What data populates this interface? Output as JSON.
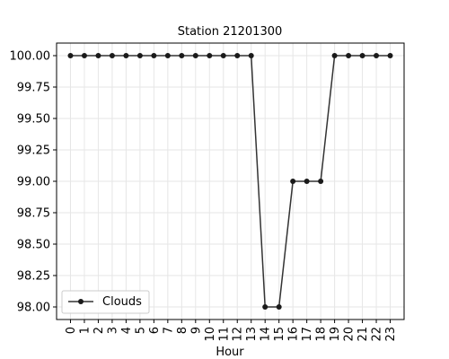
{
  "chart_data": {
    "type": "line",
    "title": "Station 21201300",
    "xlabel": "Hour",
    "ylabel": "",
    "x": [
      "0",
      "1",
      "2",
      "3",
      "4",
      "5",
      "6",
      "7",
      "8",
      "9",
      "10",
      "11",
      "12",
      "13",
      "14",
      "15",
      "16",
      "17",
      "18",
      "19",
      "20",
      "21",
      "22",
      "23"
    ],
    "series": [
      {
        "name": "Clouds",
        "values": [
          100,
          100,
          100,
          100,
          100,
          100,
          100,
          100,
          100,
          100,
          100,
          100,
          100,
          100,
          98,
          98,
          99,
          99,
          99,
          100,
          100,
          100,
          100,
          100
        ]
      }
    ],
    "xlim": [
      -1,
      24
    ],
    "ylim": [
      97.9,
      100.1
    ],
    "yticks": [
      "98.00",
      "98.25",
      "98.50",
      "98.75",
      "99.00",
      "99.25",
      "99.50",
      "99.75",
      "100.00"
    ],
    "grid": true,
    "legend": "lower-left",
    "line_color": "#333333",
    "marker_color": "#1a1a1a"
  }
}
